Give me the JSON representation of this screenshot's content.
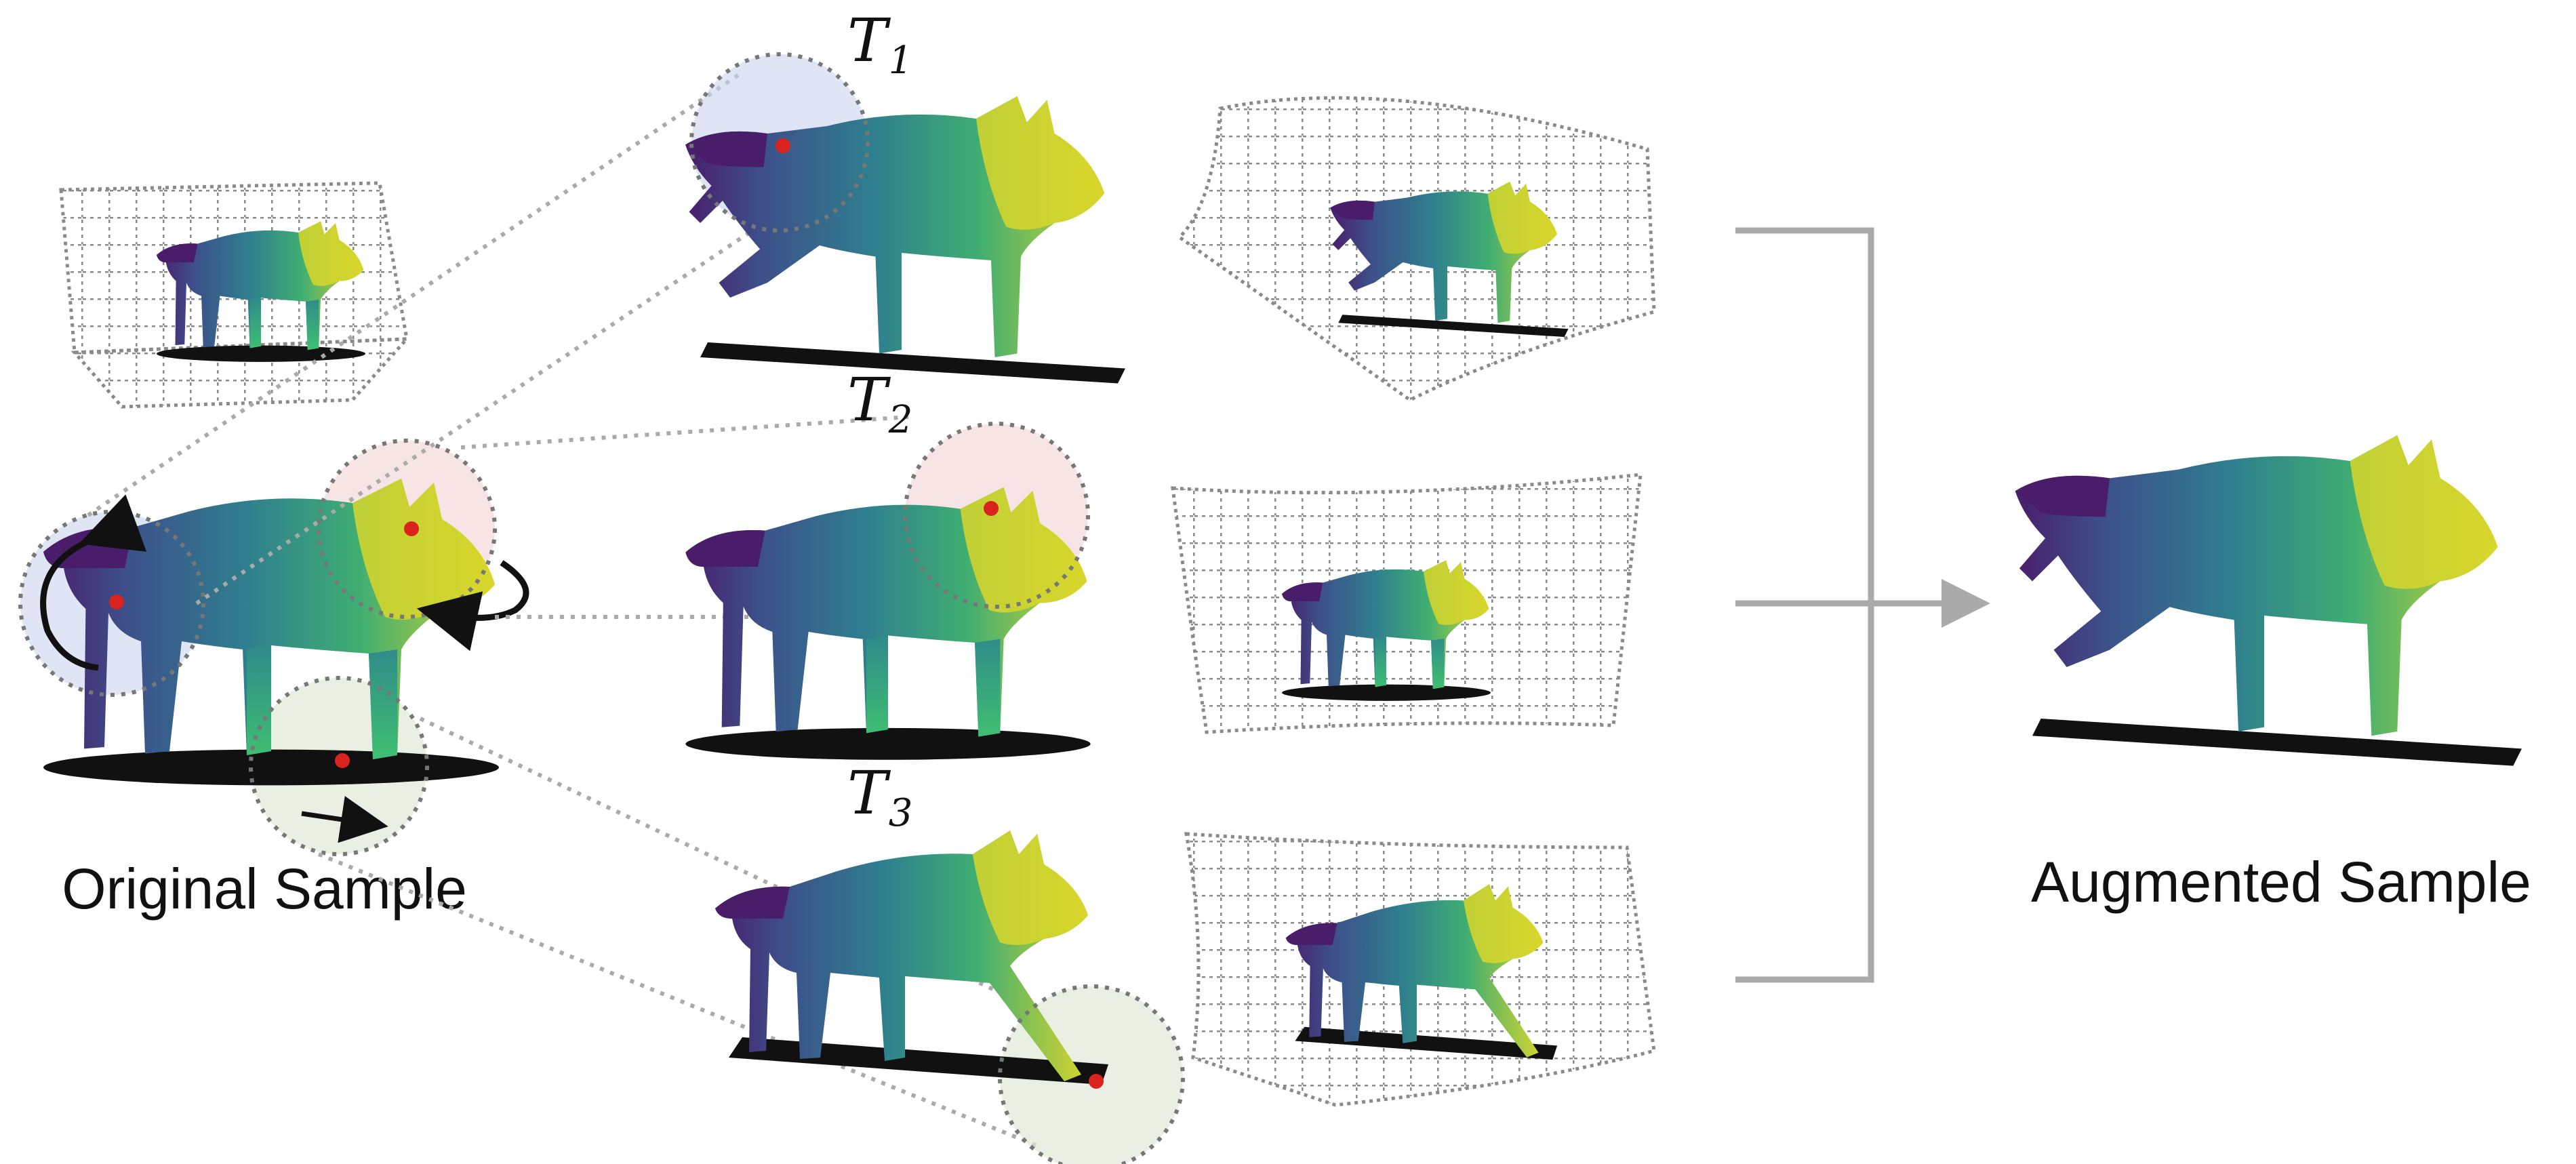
{
  "labels": {
    "original": "Original Sample",
    "augmented": "Augmented Sample",
    "t1_letter": "T",
    "t1_sub": "1",
    "t2_letter": "T",
    "t2_sub": "2",
    "t3_letter": "T",
    "t3_sub": "3"
  },
  "colors": {
    "tail": "#4a1d6b",
    "body_blue": "#3c5a8c",
    "body_teal": "#2f8a8a",
    "body_green": "#3fb36e",
    "head_yellow": "#d8d62c",
    "leg_green": "#3fbf72",
    "shadow": "#111111",
    "grid": "#8a8a8a",
    "red_point": "#d8231f",
    "circle_blue": "#c9d3ec",
    "circle_pink": "#f2d3d3",
    "circle_green": "#dfe8d6",
    "arrow_gray": "#aaaaaa"
  }
}
